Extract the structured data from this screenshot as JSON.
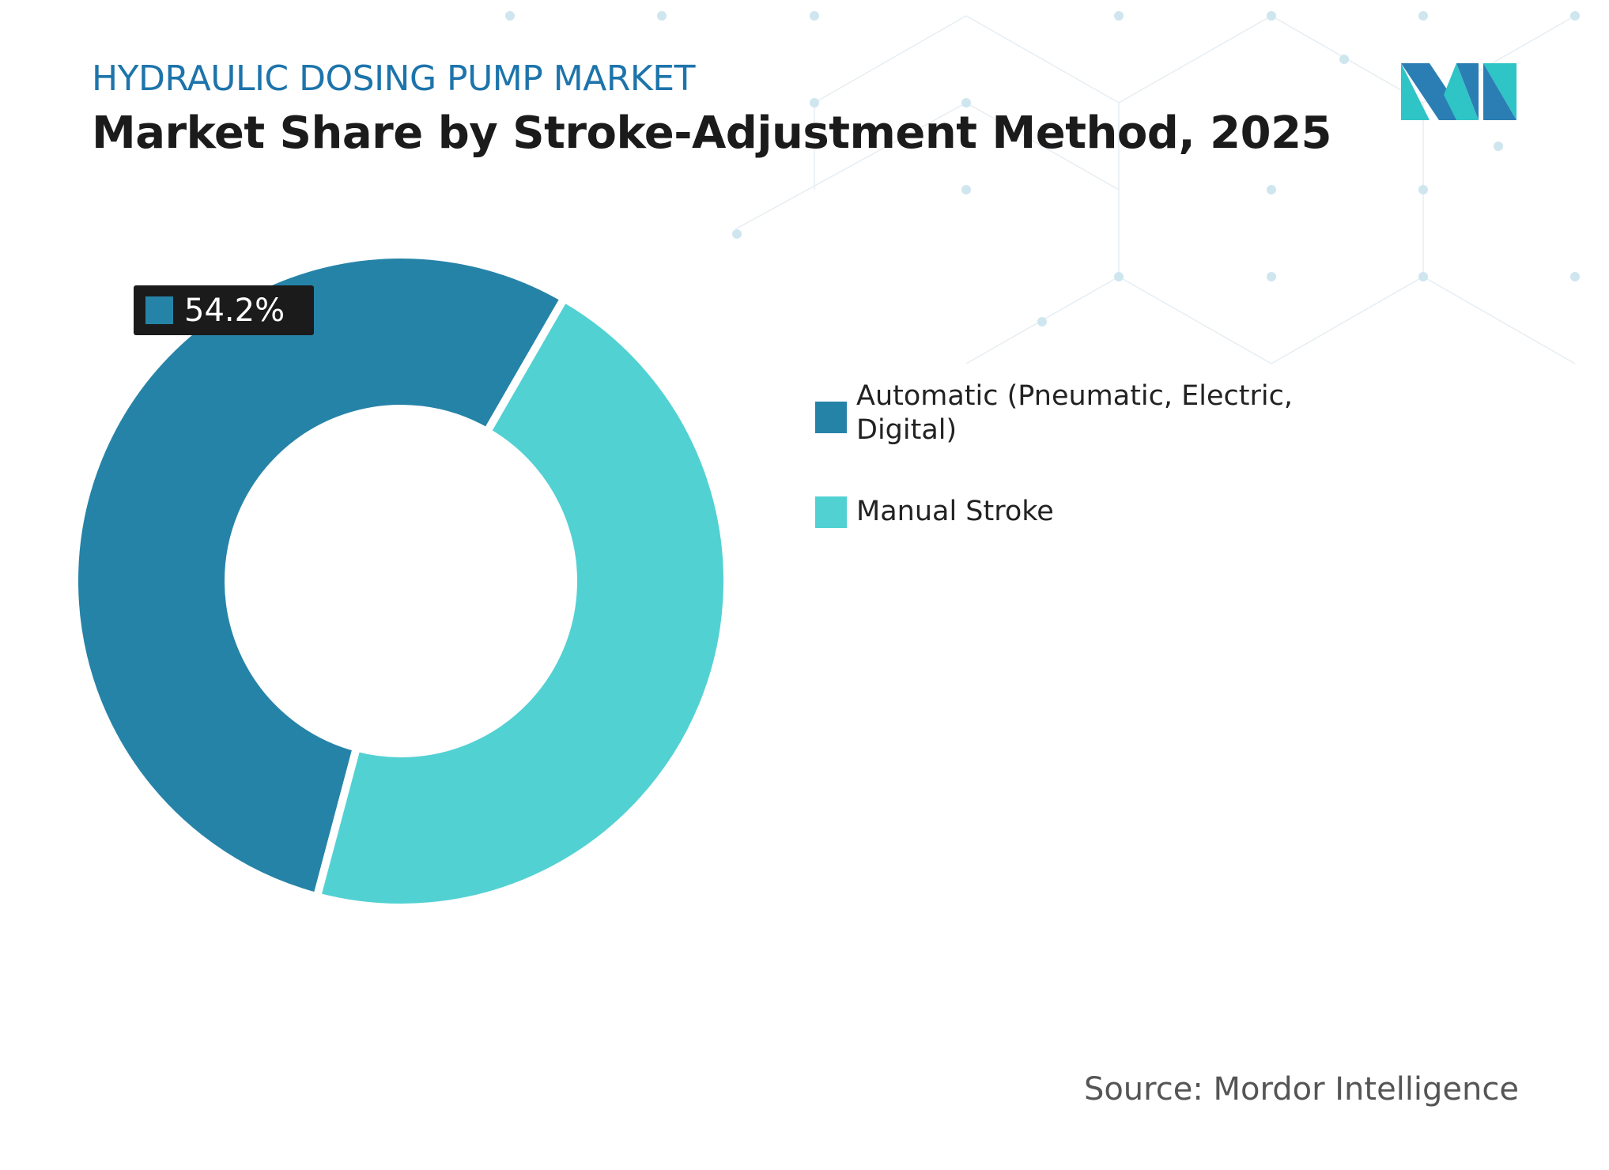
{
  "header": {
    "subtitle": "HYDRAULIC DOSING PUMP MARKET",
    "title": "Market Share by Stroke-Adjustment Method, 2025"
  },
  "chart_data": {
    "type": "donut",
    "categories": [
      "Automatic (Pneumatic, Electric, Digital)",
      "Manual Stroke"
    ],
    "values": [
      54.2,
      45.8
    ],
    "value_labels": [
      "54.2%",
      null
    ],
    "colors": [
      "#2683a8",
      "#52d1d3"
    ]
  },
  "footer": {
    "source": "Source: Mordor Intelligence"
  }
}
